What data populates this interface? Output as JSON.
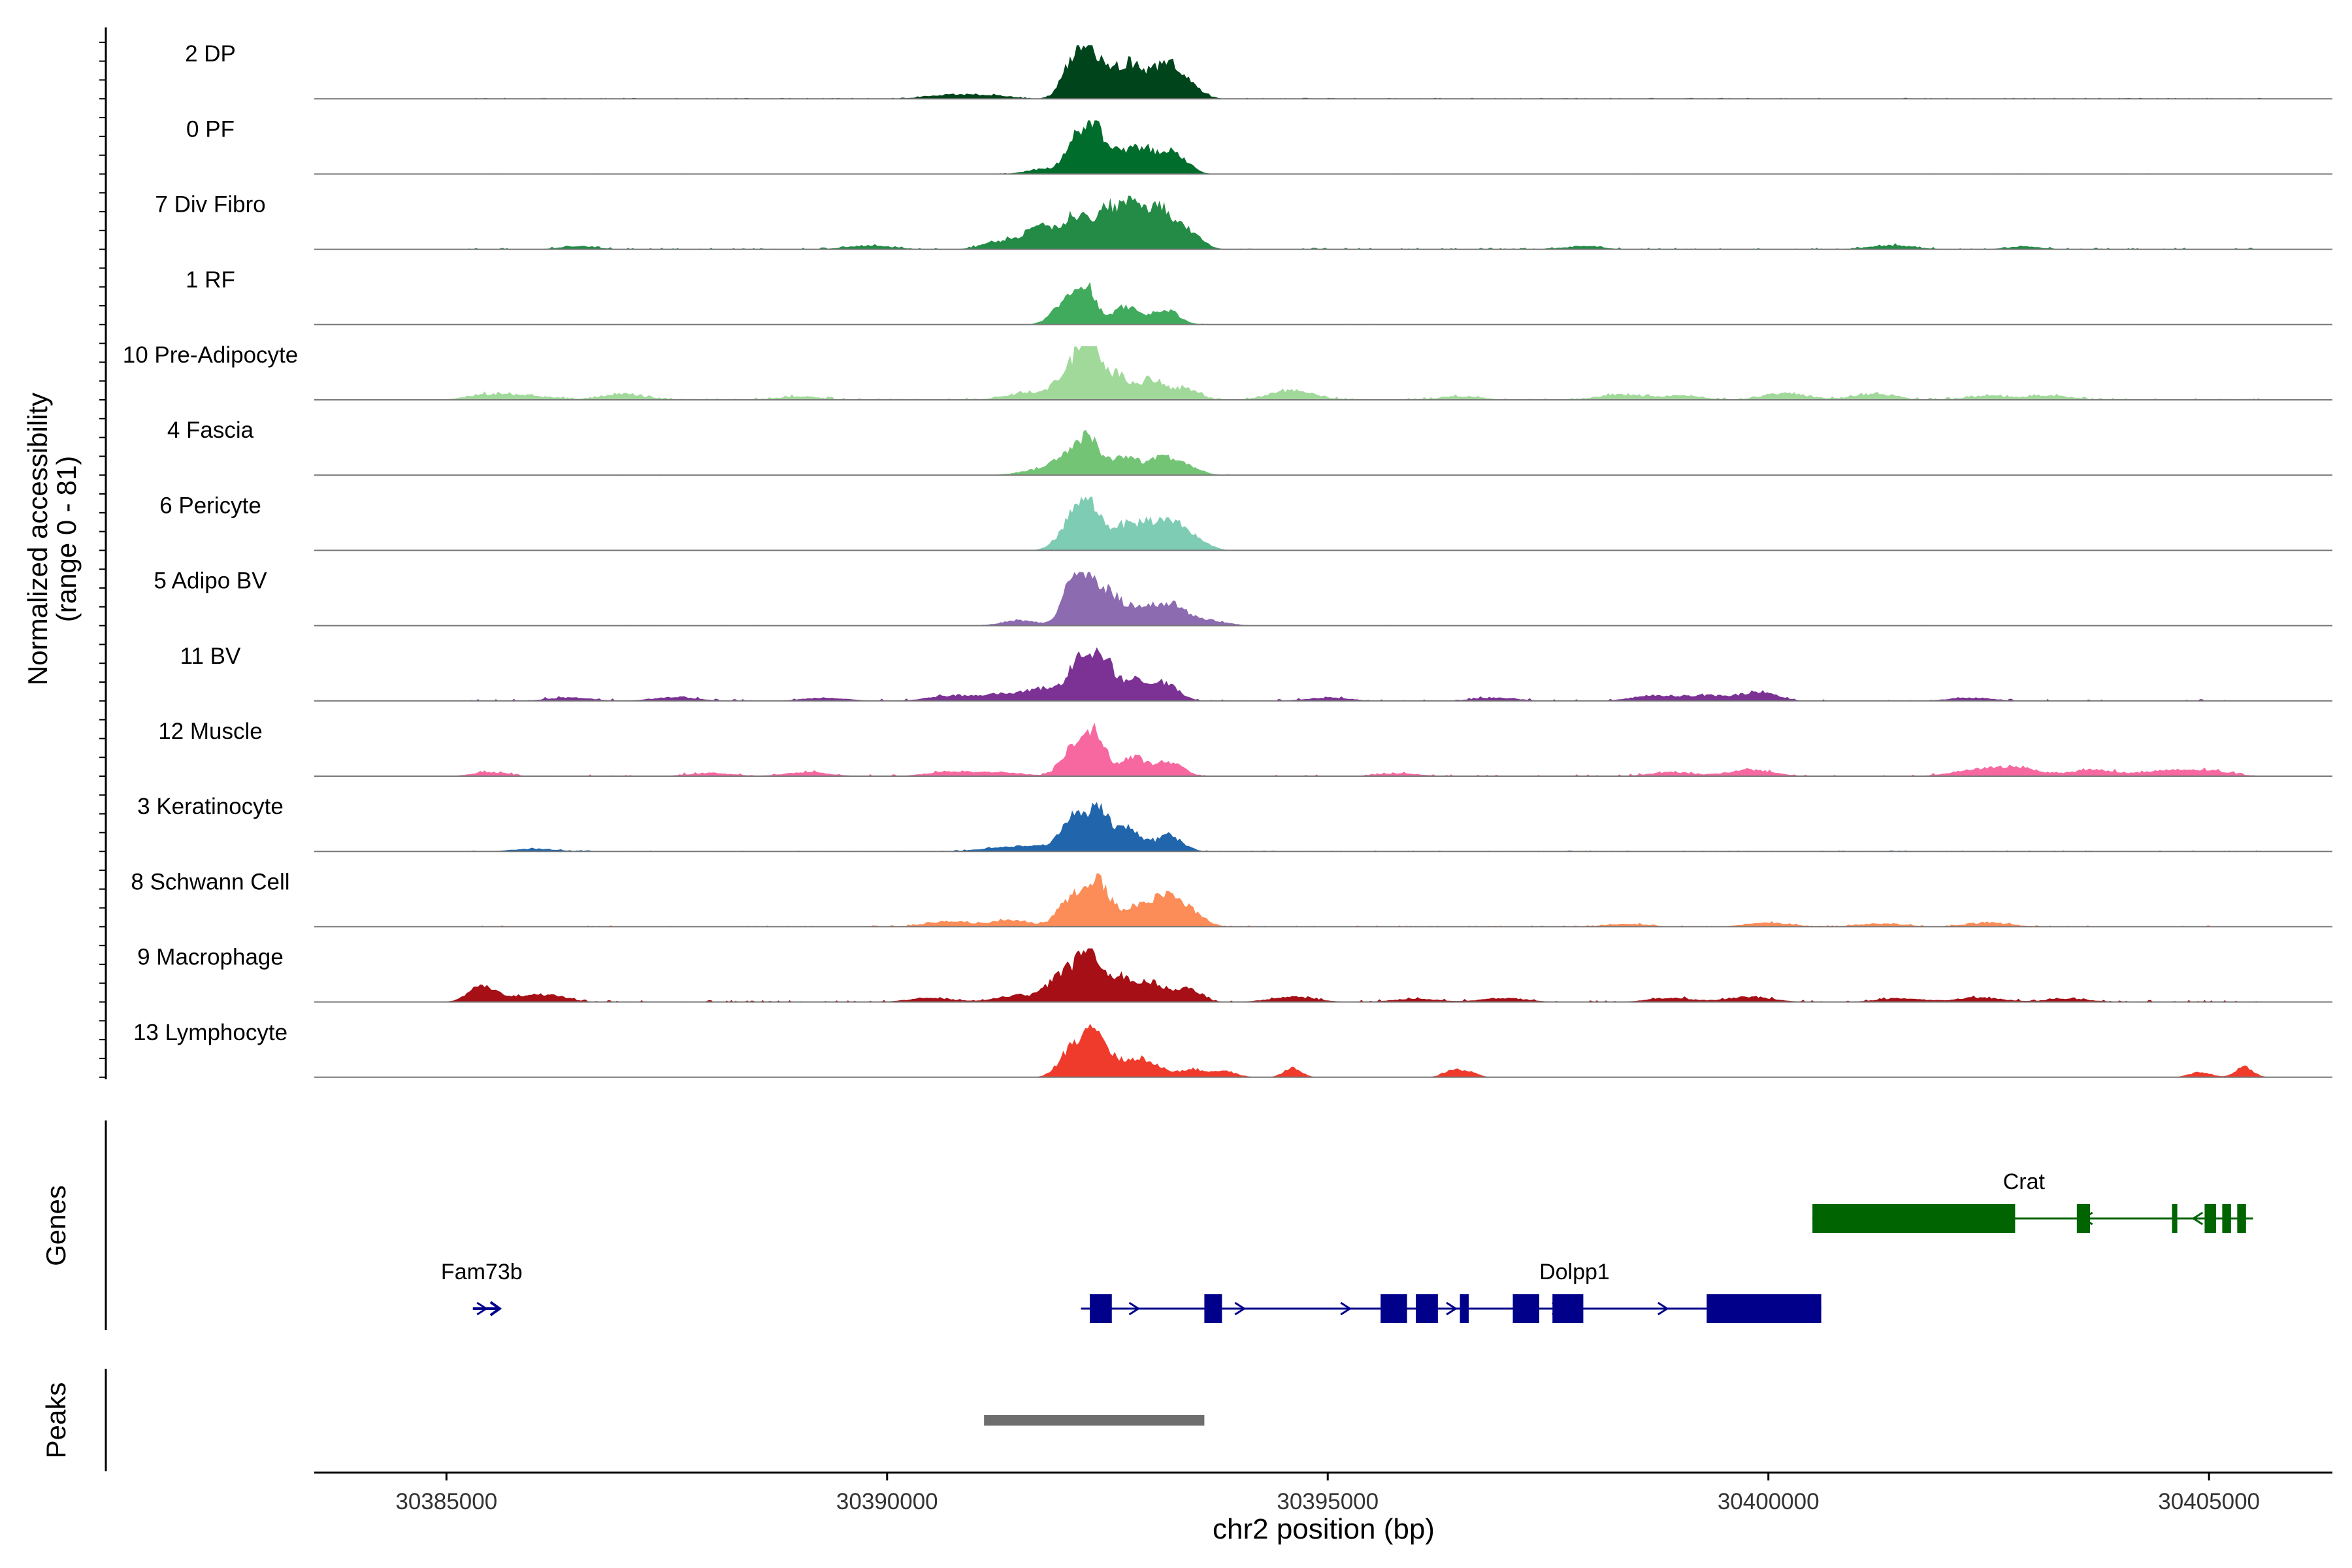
{
  "chart_data": {
    "type": "area",
    "title": "",
    "chromosome": "chr2",
    "xlabel": "chr2 position (bp)",
    "ylabel_line1": "Normalized accessibility",
    "ylabel_line2": "(range 0 - 81)",
    "y_range": [
      0,
      81
    ],
    "xlim": [
      30383500,
      30406400
    ],
    "x_ticks": [
      30385000,
      30390000,
      30395000,
      30400000,
      30405000
    ],
    "x_tick_labels": [
      "30385000",
      "30390000",
      "30395000",
      "30400000",
      "30405000"
    ],
    "track_labels": {
      "genes": "Genes",
      "peaks": "Peaks"
    },
    "series": [
      {
        "name": "2 DP",
        "color": "#00441B",
        "noise": 3,
        "noise_density": 0.9,
        "peaks": [
          [
            30390700,
            6,
            250
          ],
          [
            30391200,
            5,
            200
          ],
          [
            30392100,
            52,
            120
          ],
          [
            30392300,
            66,
            110
          ],
          [
            30392550,
            36,
            120
          ],
          [
            30392800,
            48,
            140
          ],
          [
            30393150,
            48,
            140
          ],
          [
            30393400,
            22,
            150
          ]
        ]
      },
      {
        "name": "0 PF",
        "color": "#006D2C",
        "noise": 2,
        "noise_density": 0.6,
        "peaks": [
          [
            30391800,
            8,
            200
          ],
          [
            30392150,
            50,
            120
          ],
          [
            30392350,
            60,
            110
          ],
          [
            30392600,
            30,
            130
          ],
          [
            30392900,
            38,
            140
          ],
          [
            30393250,
            34,
            150
          ]
        ]
      },
      {
        "name": "7 Div Fibro",
        "color": "#238B45",
        "noise": 5,
        "noise_density": 0.55,
        "peaks": [
          [
            30386500,
            5,
            200
          ],
          [
            30389800,
            6,
            250
          ],
          [
            30391300,
            12,
            200
          ],
          [
            30391750,
            34,
            180
          ],
          [
            30392150,
            48,
            140
          ],
          [
            30392500,
            58,
            140
          ],
          [
            30392800,
            68,
            130
          ],
          [
            30393100,
            58,
            130
          ],
          [
            30393400,
            30,
            150
          ],
          [
            30397900,
            5,
            200
          ],
          [
            30401400,
            6,
            250
          ],
          [
            30402900,
            4,
            200
          ]
        ]
      },
      {
        "name": "1 RF",
        "color": "#41AB5D",
        "noise": 2,
        "noise_density": 0.4,
        "peaks": [
          [
            30392000,
            28,
            140
          ],
          [
            30392250,
            58,
            120
          ],
          [
            30392700,
            28,
            130
          ],
          [
            30393150,
            24,
            150
          ]
        ]
      },
      {
        "name": "10 Pre-Adipocyte",
        "color": "#A1D99B",
        "noise": 6,
        "noise_density": 0.7,
        "peaks": [
          [
            30385500,
            8,
            250
          ],
          [
            30386000,
            5,
            250
          ],
          [
            30387000,
            8,
            250
          ],
          [
            30389000,
            5,
            250
          ],
          [
            30391600,
            10,
            250
          ],
          [
            30392100,
            48,
            160
          ],
          [
            30392300,
            72,
            110
          ],
          [
            30392600,
            38,
            140
          ],
          [
            30393000,
            30,
            150
          ],
          [
            30393400,
            16,
            150
          ],
          [
            30394600,
            14,
            250
          ],
          [
            30396500,
            5,
            250
          ],
          [
            30398300,
            8,
            250
          ],
          [
            30399000,
            6,
            250
          ],
          [
            30400200,
            10,
            250
          ],
          [
            30401200,
            8,
            250
          ],
          [
            30402500,
            6,
            250
          ],
          [
            30403200,
            6,
            250
          ]
        ]
      },
      {
        "name": "4 Fascia",
        "color": "#74C476",
        "noise": 2,
        "noise_density": 0.4,
        "peaks": [
          [
            30391700,
            8,
            200
          ],
          [
            30392050,
            30,
            150
          ],
          [
            30392300,
            50,
            130
          ],
          [
            30392700,
            28,
            140
          ],
          [
            30393100,
            26,
            150
          ],
          [
            30393400,
            14,
            150
          ]
        ]
      },
      {
        "name": "6 Pericyte",
        "color": "#7ECCB3",
        "noise": 2,
        "noise_density": 0.4,
        "peaks": [
          [
            30392100,
            42,
            150
          ],
          [
            30392300,
            60,
            130
          ],
          [
            30392650,
            34,
            140
          ],
          [
            30392950,
            38,
            140
          ],
          [
            30393250,
            36,
            150
          ],
          [
            30393500,
            14,
            150
          ]
        ]
      },
      {
        "name": "5 Adipo BV",
        "color": "#8C6BB1",
        "noise": 2,
        "noise_density": 0.35,
        "peaks": [
          [
            30391500,
            8,
            200
          ],
          [
            30392100,
            62,
            120
          ],
          [
            30392300,
            60,
            130
          ],
          [
            30392550,
            40,
            130
          ],
          [
            30392900,
            30,
            150
          ],
          [
            30393250,
            30,
            150
          ],
          [
            30393650,
            8,
            200
          ]
        ]
      },
      {
        "name": "11 BV",
        "color": "#7B3294",
        "noise": 6,
        "noise_density": 0.35,
        "peaks": [
          [
            30386400,
            5,
            250
          ],
          [
            30387600,
            6,
            250
          ],
          [
            30389300,
            5,
            250
          ],
          [
            30390700,
            7,
            250
          ],
          [
            30391300,
            10,
            250
          ],
          [
            30391800,
            18,
            200
          ],
          [
            30392200,
            64,
            130
          ],
          [
            30392450,
            60,
            120
          ],
          [
            30392800,
            30,
            150
          ],
          [
            30393150,
            26,
            160
          ],
          [
            30395000,
            5,
            250
          ],
          [
            30396900,
            5,
            250
          ],
          [
            30398700,
            8,
            250
          ],
          [
            30399300,
            8,
            250
          ],
          [
            30399900,
            14,
            200
          ],
          [
            30402300,
            5,
            250
          ]
        ]
      },
      {
        "name": "12 Muscle",
        "color": "#F768A1",
        "noise": 6,
        "noise_density": 0.35,
        "peaks": [
          [
            30385500,
            6,
            200
          ],
          [
            30388000,
            5,
            250
          ],
          [
            30389100,
            6,
            250
          ],
          [
            30390700,
            7,
            250
          ],
          [
            30391300,
            6,
            250
          ],
          [
            30392100,
            40,
            130
          ],
          [
            30392350,
            64,
            130
          ],
          [
            30392800,
            28,
            140
          ],
          [
            30393200,
            22,
            150
          ],
          [
            30395800,
            4,
            250
          ],
          [
            30398900,
            6,
            250
          ],
          [
            30399800,
            10,
            250
          ],
          [
            30402300,
            8,
            250
          ],
          [
            30402800,
            14,
            250
          ],
          [
            30403700,
            10,
            250
          ],
          [
            30404500,
            8,
            250
          ],
          [
            30405000,
            8,
            250
          ]
        ]
      },
      {
        "name": "3 Keratinocyte",
        "color": "#2166AC",
        "noise": 3,
        "noise_density": 0.7,
        "peaks": [
          [
            30386000,
            4,
            250
          ],
          [
            30391300,
            6,
            250
          ],
          [
            30391700,
            6,
            200
          ],
          [
            30392100,
            50,
            130
          ],
          [
            30392400,
            68,
            120
          ],
          [
            30392750,
            34,
            140
          ],
          [
            30393200,
            24,
            150
          ]
        ]
      },
      {
        "name": "8 Schwann Cell",
        "color": "#FC8D59",
        "noise": 4,
        "noise_density": 0.6,
        "peaks": [
          [
            30390700,
            8,
            250
          ],
          [
            30391400,
            10,
            200
          ],
          [
            30392100,
            44,
            150
          ],
          [
            30392400,
            64,
            130
          ],
          [
            30392800,
            30,
            150
          ],
          [
            30393150,
            44,
            150
          ],
          [
            30393450,
            22,
            150
          ],
          [
            30398400,
            4,
            250
          ],
          [
            30400000,
            6,
            250
          ],
          [
            30401300,
            5,
            250
          ],
          [
            30402500,
            6,
            250
          ]
        ]
      },
      {
        "name": "9 Macrophage",
        "color": "#A50F15",
        "noise": 6,
        "noise_density": 0.45,
        "peaks": [
          [
            30385400,
            22,
            150
          ],
          [
            30385800,
            8,
            250
          ],
          [
            30386200,
            8,
            200
          ],
          [
            30390500,
            6,
            250
          ],
          [
            30391500,
            10,
            250
          ],
          [
            30392000,
            42,
            160
          ],
          [
            30392300,
            72,
            130
          ],
          [
            30392650,
            36,
            140
          ],
          [
            30393000,
            28,
            150
          ],
          [
            30393400,
            20,
            150
          ],
          [
            30394600,
            8,
            250
          ],
          [
            30396000,
            5,
            250
          ],
          [
            30397000,
            6,
            250
          ],
          [
            30398900,
            6,
            250
          ],
          [
            30399800,
            8,
            250
          ],
          [
            30401500,
            6,
            250
          ],
          [
            30402400,
            7,
            250
          ],
          [
            30403400,
            5,
            250
          ]
        ]
      },
      {
        "name": "13 Lymphocyte",
        "color": "#EF3B2C",
        "noise": 0,
        "noise_density": 0,
        "peaks": [
          [
            30392100,
            44,
            140
          ],
          [
            30392350,
            72,
            120
          ],
          [
            30392600,
            22,
            100
          ],
          [
            30392850,
            28,
            110
          ],
          [
            30393100,
            14,
            120
          ],
          [
            30393450,
            12,
            120
          ],
          [
            30393800,
            10,
            150
          ],
          [
            30394600,
            14,
            100
          ],
          [
            30396400,
            10,
            100
          ],
          [
            30396600,
            8,
            100
          ],
          [
            30404900,
            8,
            120
          ],
          [
            30405400,
            16,
            100
          ]
        ]
      }
    ],
    "genes": [
      {
        "name": "Crat",
        "strand": "-",
        "color": "#006400",
        "row": 1,
        "start": 30400500,
        "end": 30405500,
        "exons": [
          [
            30400500,
            30402800
          ],
          [
            30403500,
            30403650
          ],
          [
            30404580,
            30404640
          ],
          [
            30404950,
            30405080
          ],
          [
            30405150,
            30405250
          ],
          [
            30405320,
            30405420
          ]
        ]
      },
      {
        "name": "Dolpp1",
        "strand": "+",
        "color": "#00008B",
        "row": 2,
        "start": 30392200,
        "end": 30400600,
        "exons": [
          [
            30392300,
            30392550
          ],
          [
            30393600,
            30393800
          ],
          [
            30395600,
            30395900
          ],
          [
            30396000,
            30396250
          ],
          [
            30396500,
            30396600
          ],
          [
            30397100,
            30397400
          ],
          [
            30397550,
            30397900
          ],
          [
            30399300,
            30400600
          ]
        ]
      },
      {
        "name": "Fam73b",
        "strand": "+",
        "color": "#00008B",
        "row": 2,
        "start": 30385300,
        "end": 30385500,
        "exons": []
      }
    ],
    "peak_regions": [
      [
        30391100,
        30393600
      ]
    ]
  }
}
